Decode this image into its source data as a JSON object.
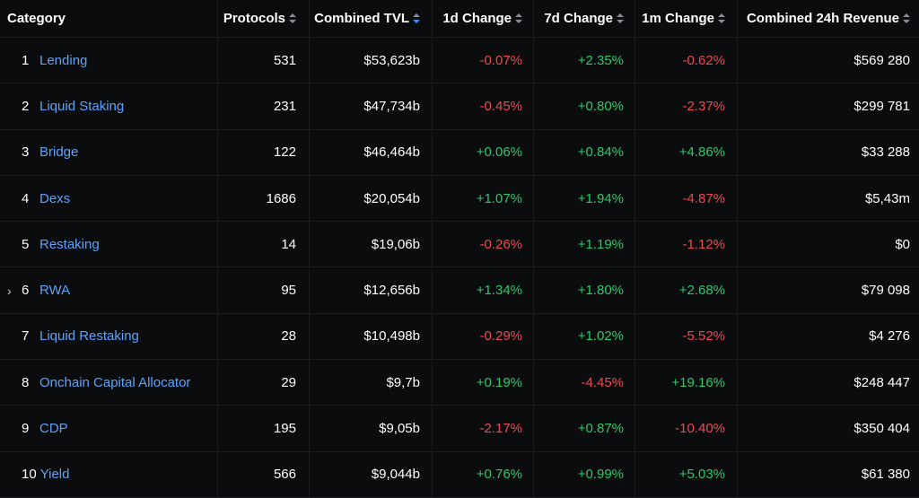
{
  "colors": {
    "background": "#0b0c0e",
    "link": "#5ea2f7",
    "positive": "#2cc86a",
    "negative": "#ec4a4f",
    "sort_active": "#3b8ff6"
  },
  "header": {
    "category": "Category",
    "protocols": "Protocols",
    "tvl": "Combined TVL",
    "d1": "1d Change",
    "d7": "7d Change",
    "m1": "1m Change",
    "revenue": "Combined 24h Revenue"
  },
  "rows": [
    {
      "rank": "1",
      "name": "Lending",
      "protocols": "531",
      "tvl": "$53,623b",
      "d1": "-0.07%",
      "d7": "+2.35%",
      "m1": "-0.62%",
      "revenue": "$569 280",
      "expand": ""
    },
    {
      "rank": "2",
      "name": "Liquid Staking",
      "protocols": "231",
      "tvl": "$47,734b",
      "d1": "-0.45%",
      "d7": "+0.80%",
      "m1": "-2.37%",
      "revenue": "$299 781",
      "expand": ""
    },
    {
      "rank": "3",
      "name": "Bridge",
      "protocols": "122",
      "tvl": "$46,464b",
      "d1": "+0.06%",
      "d7": "+0.84%",
      "m1": "+4.86%",
      "revenue": "$33 288",
      "expand": ""
    },
    {
      "rank": "4",
      "name": "Dexs",
      "protocols": "1686",
      "tvl": "$20,054b",
      "d1": "+1.07%",
      "d7": "+1.94%",
      "m1": "-4.87%",
      "revenue": "$5,43m",
      "expand": ""
    },
    {
      "rank": "5",
      "name": "Restaking",
      "protocols": "14",
      "tvl": "$19,06b",
      "d1": "-0.26%",
      "d7": "+1.19%",
      "m1": "-1.12%",
      "revenue": "$0",
      "expand": ""
    },
    {
      "rank": "6",
      "name": "RWA",
      "protocols": "95",
      "tvl": "$12,656b",
      "d1": "+1.34%",
      "d7": "+1.80%",
      "m1": "+2.68%",
      "revenue": "$79 098",
      "expand": "›"
    },
    {
      "rank": "7",
      "name": "Liquid Restaking",
      "protocols": "28",
      "tvl": "$10,498b",
      "d1": "-0.29%",
      "d7": "+1.02%",
      "m1": "-5.52%",
      "revenue": "$4 276",
      "expand": ""
    },
    {
      "rank": "8",
      "name": "Onchain Capital Allocator",
      "protocols": "29",
      "tvl": "$9,7b",
      "d1": "+0.19%",
      "d7": "-4.45%",
      "m1": "+19.16%",
      "revenue": "$248 447",
      "expand": ""
    },
    {
      "rank": "9",
      "name": "CDP",
      "protocols": "195",
      "tvl": "$9,05b",
      "d1": "-2.17%",
      "d7": "+0.87%",
      "m1": "-10.40%",
      "revenue": "$350 404",
      "expand": ""
    },
    {
      "rank": "10",
      "name": "Yield",
      "protocols": "566",
      "tvl": "$9,044b",
      "d1": "+0.76%",
      "d7": "+0.99%",
      "m1": "+5.03%",
      "revenue": "$61 380",
      "expand": ""
    }
  ]
}
